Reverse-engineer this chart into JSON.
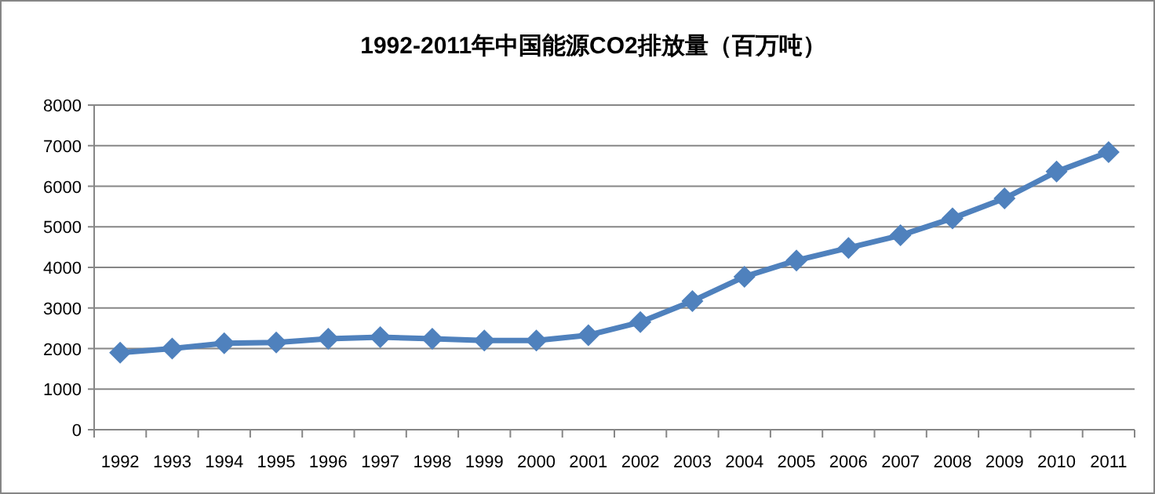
{
  "chart_data": {
    "type": "line",
    "title": "1992-2011年中国能源CO2排放量（百万吨）",
    "categories": [
      "1992",
      "1993",
      "1994",
      "1995",
      "1996",
      "1997",
      "1998",
      "1999",
      "2000",
      "2001",
      "2002",
      "2003",
      "2004",
      "2005",
      "2006",
      "2007",
      "2008",
      "2009",
      "2010",
      "2011"
    ],
    "series": [
      {
        "color": "#4f81bd",
        "values": [
          1900,
          2000,
          2130,
          2150,
          2240,
          2280,
          2240,
          2200,
          2200,
          2330,
          2650,
          3170,
          3770,
          4170,
          4480,
          4790,
          5210,
          5700,
          6360,
          6840
        ]
      }
    ],
    "ylim": [
      0,
      8000
    ],
    "yticks": [
      0,
      1000,
      2000,
      3000,
      4000,
      5000,
      6000,
      7000,
      8000
    ],
    "grid": "y",
    "marker": "diamond",
    "line_style": "solid"
  }
}
